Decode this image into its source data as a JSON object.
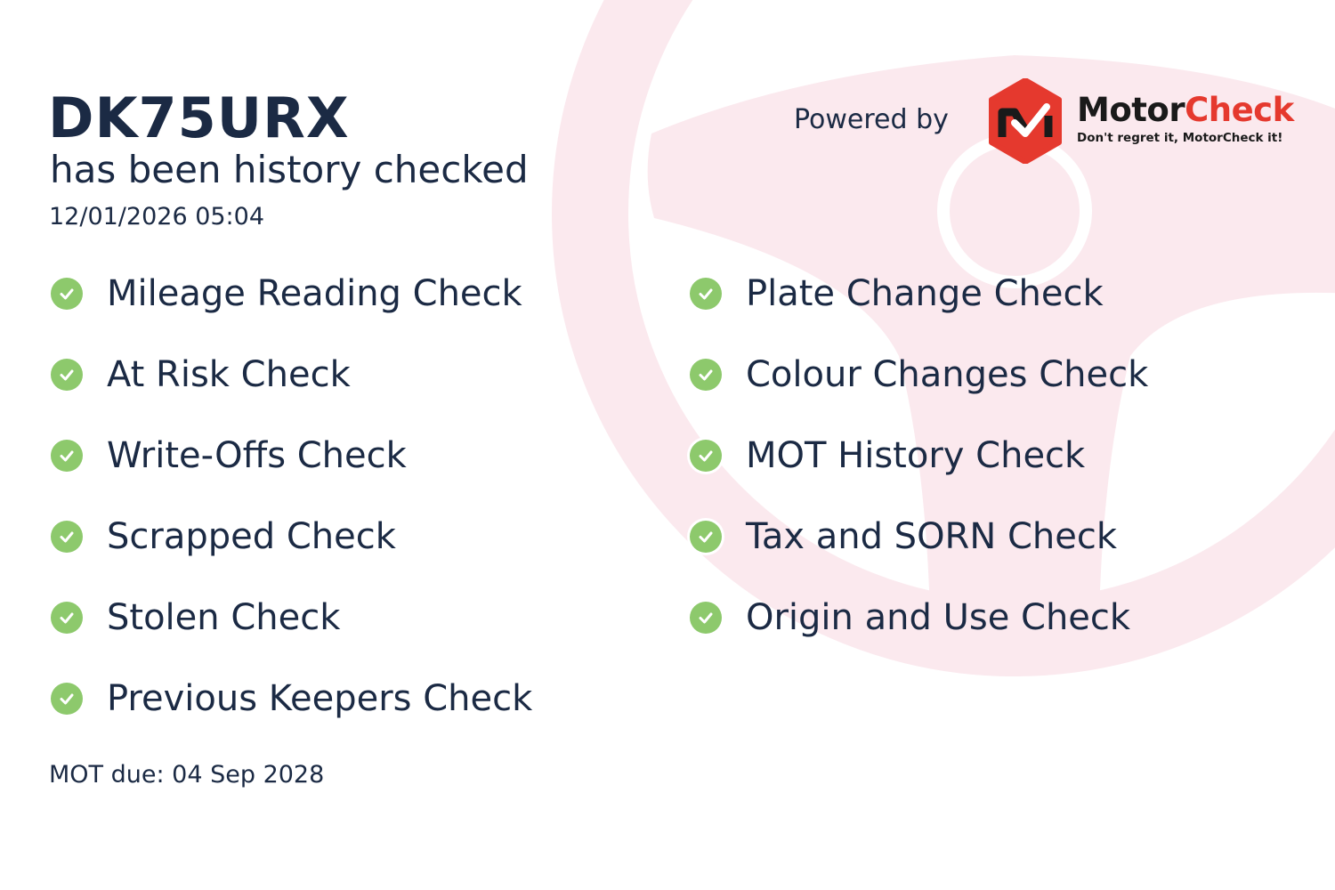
{
  "header": {
    "plate": "DK75URX",
    "subtitle": "has been history checked",
    "datetime": "12/01/2026 05:04"
  },
  "branding": {
    "powered_by": "Powered by",
    "logo_word_1": "Motor",
    "logo_word_2": "Check",
    "tagline": "Don't regret it, MotorCheck it!",
    "brand_color": "#e5392e"
  },
  "checks_left": [
    {
      "label": "Mileage Reading Check",
      "icon": "check-circle-icon"
    },
    {
      "label": "At Risk Check",
      "icon": "check-circle-icon"
    },
    {
      "label": "Write-Offs Check",
      "icon": "check-circle-icon"
    },
    {
      "label": "Scrapped Check",
      "icon": "check-circle-icon"
    },
    {
      "label": "Stolen Check",
      "icon": "check-circle-icon"
    },
    {
      "label": "Previous Keepers Check",
      "icon": "check-circle-icon"
    }
  ],
  "checks_right": [
    {
      "label": "Plate Change Check",
      "icon": "check-circle-icon"
    },
    {
      "label": "Colour Changes Check",
      "icon": "check-circle-icon"
    },
    {
      "label": "MOT History Check",
      "icon": "check-circle-icon"
    },
    {
      "label": "Tax and SORN Check",
      "icon": "check-circle-icon"
    },
    {
      "label": "Origin and Use Check",
      "icon": "check-circle-icon"
    }
  ],
  "footer": {
    "mot_due": "MOT due: 04 Sep 2028"
  },
  "colors": {
    "text": "#1b2a44",
    "check_green": "#8dc96c",
    "background_graphic": "#fbe9ee"
  }
}
